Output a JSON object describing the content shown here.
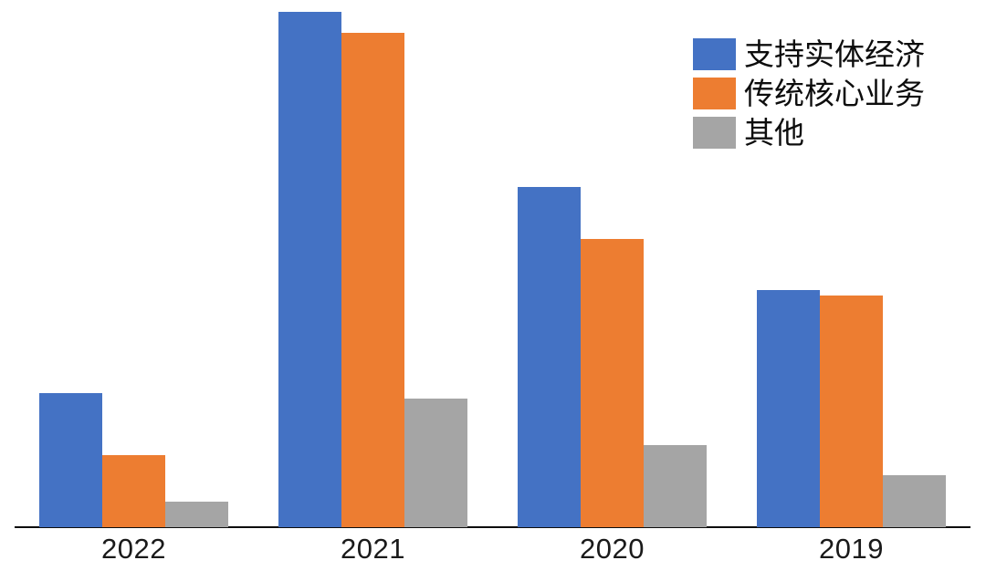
{
  "chart_data": {
    "type": "bar",
    "categories": [
      "2022",
      "2021",
      "2020",
      "2019"
    ],
    "series": [
      {
        "name": "支持实体经济",
        "color": "#4472C4",
        "values": [
          26,
          100,
          66,
          46
        ]
      },
      {
        "name": "传统核心业务",
        "color": "#ED7D31",
        "values": [
          14,
          96,
          56,
          45
        ]
      },
      {
        "name": "其他",
        "color": "#A5A5A5",
        "values": [
          5,
          25,
          16,
          10
        ]
      }
    ],
    "title": "",
    "xlabel": "",
    "ylabel": "",
    "ylim": [
      0,
      100
    ],
    "grid": false,
    "legend_position": "top-right",
    "axis_note": "no y-axis or value labels shown; values estimated on a relative scale where the 2021 支持实体经济 bar = 100"
  },
  "legend": {
    "items": [
      {
        "label": "支持实体经济",
        "color": "#4472C4"
      },
      {
        "label": "传统核心业务",
        "color": "#ED7D31"
      },
      {
        "label": "其他",
        "color": "#A5A5A5"
      }
    ]
  },
  "x_axis": {
    "labels": [
      "2022",
      "2021",
      "2020",
      "2019"
    ]
  },
  "colors": {
    "series_blue": "#4472C4",
    "series_orange": "#ED7D31",
    "series_gray": "#A5A5A5",
    "axis_line": "#0d0d0d",
    "text": "#1a1a1a",
    "background": "#ffffff"
  }
}
